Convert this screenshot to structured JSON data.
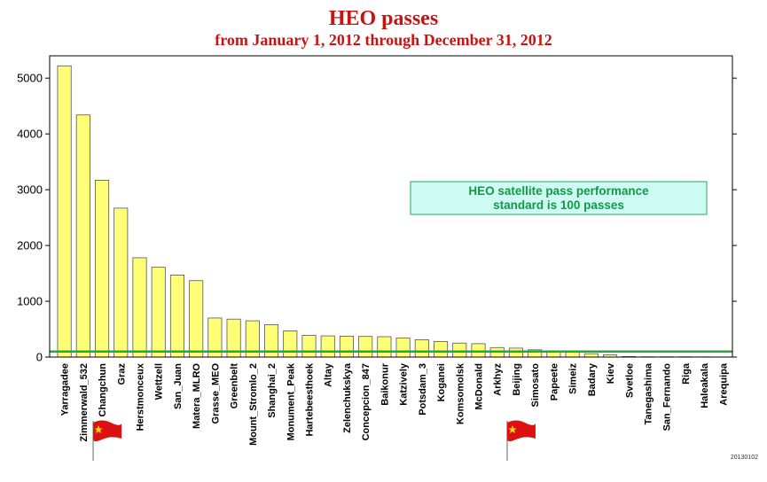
{
  "chart_data": {
    "type": "bar",
    "title": "HEO passes",
    "subtitle": "from January 1, 2012 through December 31, 2012",
    "xlabel": "",
    "ylabel": "",
    "ylim": [
      0,
      5400
    ],
    "yticks": [
      0,
      1000,
      2000,
      3000,
      4000,
      5000
    ],
    "categories": [
      "Yarragadee",
      "Zimmerwald_532",
      "Changchun",
      "Graz",
      "Herstmonceux",
      "Wettzell",
      "San_Juan",
      "Matera_MLRO",
      "Grasse_MEO",
      "Greenbelt",
      "Mount_Stromlo_2",
      "Shanghai_2",
      "Monument_Peak",
      "Hartebeesthoek",
      "Altay",
      "Zelenchukskya",
      "Concepcion_847",
      "Baikonur",
      "Katzively",
      "Potsdam_3",
      "Koganei",
      "Komsomolsk",
      "McDonald",
      "Arkhyz",
      "Beijing",
      "Simosato",
      "Papeete",
      "Simeiz",
      "Badary",
      "Kiev",
      "Svetloe",
      "Tanegashima",
      "San_Fernando",
      "Riga",
      "Haleakala",
      "Arequipa"
    ],
    "values": [
      5220,
      4340,
      3170,
      2670,
      1780,
      1610,
      1470,
      1370,
      700,
      680,
      650,
      580,
      470,
      390,
      380,
      375,
      370,
      365,
      340,
      310,
      280,
      250,
      240,
      170,
      160,
      130,
      110,
      100,
      60,
      40,
      10,
      5,
      5,
      5,
      3,
      2
    ],
    "reference_line": {
      "value": 100,
      "color": "#22aa33"
    },
    "annotation": {
      "line1": "HEO satellite pass performance",
      "line2": "standard is 100 passes"
    },
    "flag_markers": [
      "Changchun",
      "Beijing"
    ],
    "grid": false,
    "legend": "none",
    "bar_color": "#ffff77",
    "title_color": "#cc1111",
    "annotation_color": "#119944",
    "footer_code": "20130102"
  }
}
